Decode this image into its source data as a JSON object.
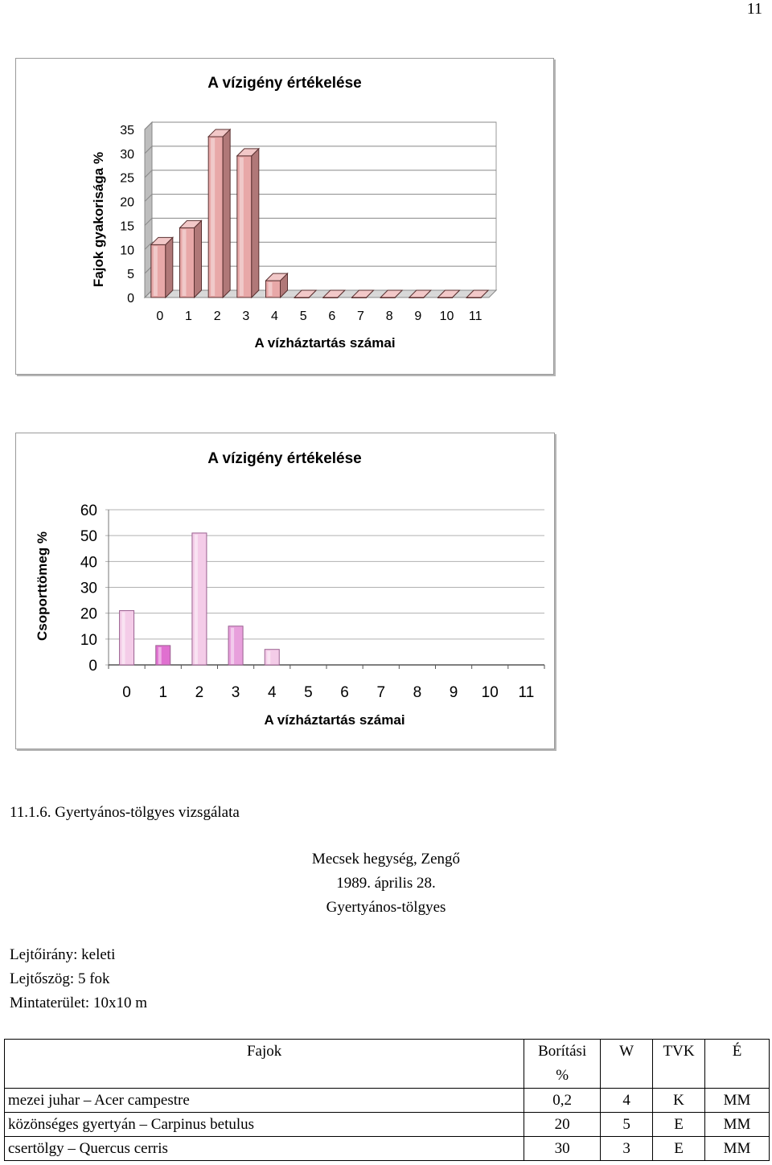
{
  "page_number": "11",
  "chart_data": [
    {
      "type": "bar",
      "style": "3d-column",
      "title": "A vízigény értékelése",
      "xlabel": "A vízháztartás számai",
      "ylabel": "Fajok gyakorisága %",
      "categories": [
        "0",
        "1",
        "2",
        "3",
        "4",
        "5",
        "6",
        "7",
        "8",
        "9",
        "10",
        "11"
      ],
      "values": [
        11,
        14.5,
        33.5,
        29.5,
        3.5,
        0,
        0,
        0,
        0,
        0,
        0,
        0
      ],
      "ylim": [
        0,
        35
      ],
      "yticks": [
        0,
        5,
        10,
        15,
        20,
        25,
        30,
        35
      ],
      "grid": true,
      "legend": "none",
      "colors": {
        "face": "#e8a8a8",
        "side": "#b07878",
        "top": "#f2c8c8",
        "highlight": "#f5e0e0"
      }
    },
    {
      "type": "bar",
      "title": "A vízigény értékelése",
      "xlabel": "A vízháztartás számai",
      "ylabel": "Csoporttömeg %",
      "categories": [
        "0",
        "1",
        "2",
        "3",
        "4",
        "5",
        "6",
        "7",
        "8",
        "9",
        "10",
        "11"
      ],
      "values": [
        21,
        7.5,
        51,
        15,
        6,
        0,
        0,
        0,
        0,
        0,
        0,
        0
      ],
      "ylim": [
        0,
        60
      ],
      "yticks": [
        0,
        10,
        20,
        30,
        40,
        50,
        60
      ],
      "grid": true,
      "legend": "none",
      "colors": {
        "bars": [
          "#f4cce8",
          "#e070d0",
          "#f4cce8",
          "#e8a0dc",
          "#f4cce8"
        ]
      }
    }
  ],
  "section_title": "11.1.6. Gyertyános-tölgyes vizsgálata",
  "location": {
    "place": "Mecsek hegység, Zengő",
    "date": "1989. április 28.",
    "community": "Gyertyános-tölgyes"
  },
  "site": {
    "aspect": "Lejtőirány: keleti",
    "slope": "Lejtőszög: 5 fok",
    "area": "Mintaterület: 10x10 m"
  },
  "table": {
    "headers": {
      "species": "Fajok",
      "cover_1": "Borítási",
      "cover_2": "%",
      "w": "W",
      "tvk": "TVK",
      "e": "É"
    },
    "rows": [
      {
        "species": "mezei juhar – Acer campestre",
        "cover": "0,2",
        "w": "4",
        "tvk": "K",
        "e": "MM"
      },
      {
        "species": "közönséges gyertyán – Carpinus betulus",
        "cover": "20",
        "w": "5",
        "tvk": "E",
        "e": "MM"
      },
      {
        "species": "csertölgy – Quercus cerris",
        "cover": "30",
        "w": "3",
        "tvk": "E",
        "e": "MM"
      }
    ]
  }
}
